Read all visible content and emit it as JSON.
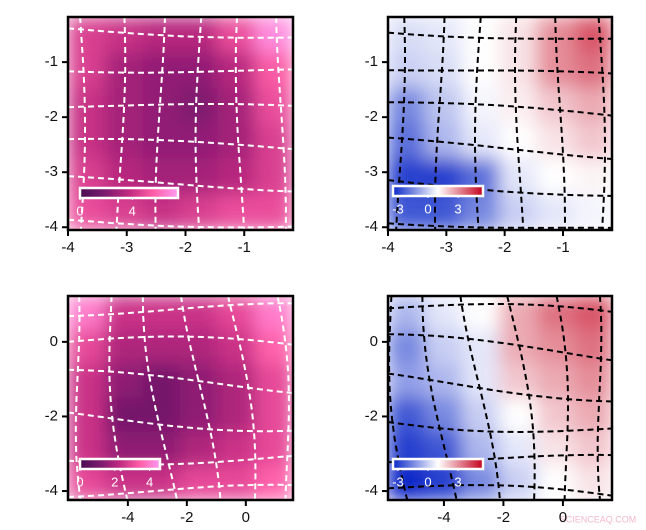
{
  "chart_data": [
    {
      "type": "heatmap",
      "xlim": [
        -4,
        -0.17
      ],
      "ylim": [
        -4.05,
        -0.18
      ],
      "xticks": [
        -4,
        -3,
        -2,
        -1
      ],
      "yticks": [
        -4,
        -3,
        -2,
        -1
      ],
      "z": [
        [
          4.5,
          4,
          3.5,
          3.5,
          5,
          7
        ],
        [
          4.5,
          3,
          2.5,
          2.5,
          3.5,
          5.5
        ],
        [
          4,
          3,
          2.5,
          2,
          3,
          5
        ],
        [
          4,
          3,
          2.5,
          2.5,
          3,
          4.5
        ],
        [
          4.5,
          3.5,
          3,
          3,
          3.5,
          4.5
        ],
        [
          5,
          4.5,
          4,
          4.5,
          5,
          5
        ]
      ],
      "clim": [
        0,
        7.5
      ],
      "cticks": [
        0,
        4
      ],
      "colormap": [
        "#4a0c52",
        "#7a1a6e",
        "#c02a80",
        "#ff5fa8",
        "#ff9cf2"
      ],
      "grid_color": "#ffffff"
    },
    {
      "type": "heatmap",
      "xlim": [
        -4,
        -0.16
      ],
      "ylim": [
        -4.05,
        -0.18
      ],
      "xticks": [
        -4,
        -3,
        -2,
        -1
      ],
      "yticks": [
        -4,
        -3,
        -2,
        -1
      ],
      "z": [
        [
          0.3,
          0.5,
          1,
          1.5,
          3,
          4
        ],
        [
          0,
          0.3,
          1,
          1.5,
          3,
          3.5
        ],
        [
          -1.5,
          -0.2,
          0.8,
          1.3,
          2,
          2.5
        ],
        [
          -2,
          -0.5,
          0.5,
          1,
          1.5,
          2
        ],
        [
          -3,
          -3,
          -2,
          0.5,
          1,
          1.2
        ],
        [
          -2.5,
          -2.5,
          -1.5,
          0,
          0.5,
          0.8
        ]
      ],
      "clim": [
        -3.5,
        5.5
      ],
      "cticks": [
        -3,
        0,
        3
      ],
      "colormap": [
        "#0a28c8",
        "#ffffff",
        "#c4001c"
      ],
      "grid_color": "#000000"
    },
    {
      "type": "heatmap",
      "xlim": [
        -6.03,
        1.6
      ],
      "ylim": [
        -4.24,
        1.23
      ],
      "xticks": [
        -4,
        -2,
        0
      ],
      "yticks": [
        -4,
        -2,
        0
      ],
      "z": [
        [
          4,
          2.5,
          2.5,
          2.5,
          3,
          4
        ],
        [
          3,
          2,
          2,
          2,
          2.5,
          3.5
        ],
        [
          2.5,
          1.5,
          1,
          1.5,
          2,
          3
        ],
        [
          2.5,
          1,
          1,
          1.5,
          2,
          3
        ],
        [
          2.5,
          1.5,
          1.5,
          2,
          2.5,
          3
        ],
        [
          3,
          2.5,
          2.5,
          3,
          3,
          3.5
        ]
      ],
      "clim": [
        0,
        4.6
      ],
      "cticks": [
        0,
        2,
        4
      ],
      "colormap": [
        "#4a0c52",
        "#7a1a6e",
        "#c02a80",
        "#ff5fa8",
        "#ff9cf2"
      ],
      "grid_color": "#ffffff"
    },
    {
      "type": "heatmap",
      "xlim": [
        -5.88,
        1.65
      ],
      "ylim": [
        -4.24,
        1.23
      ],
      "xticks": [
        -4,
        -2,
        0
      ],
      "yticks": [
        -4,
        -2,
        0
      ],
      "z": [
        [
          -0.5,
          0.5,
          1,
          2.5,
          3.5,
          4
        ],
        [
          -1.5,
          0,
          0.5,
          2.5,
          3,
          3.5
        ],
        [
          -1,
          -0.5,
          0.5,
          2,
          2.5,
          3
        ],
        [
          -2.5,
          -1.5,
          0,
          1,
          2,
          2.5
        ],
        [
          -3,
          -2.5,
          -0.5,
          0.5,
          1.5,
          2
        ],
        [
          -3.5,
          -3,
          -1.5,
          0,
          1,
          1.5
        ]
      ],
      "clim": [
        -3.5,
        5.5
      ],
      "cticks": [
        -3,
        0,
        3
      ],
      "colormap": [
        "#0a28c8",
        "#ffffff",
        "#c4001c"
      ],
      "grid_color": "#000000"
    }
  ],
  "watermark": "SCIENCEAQ.COM"
}
